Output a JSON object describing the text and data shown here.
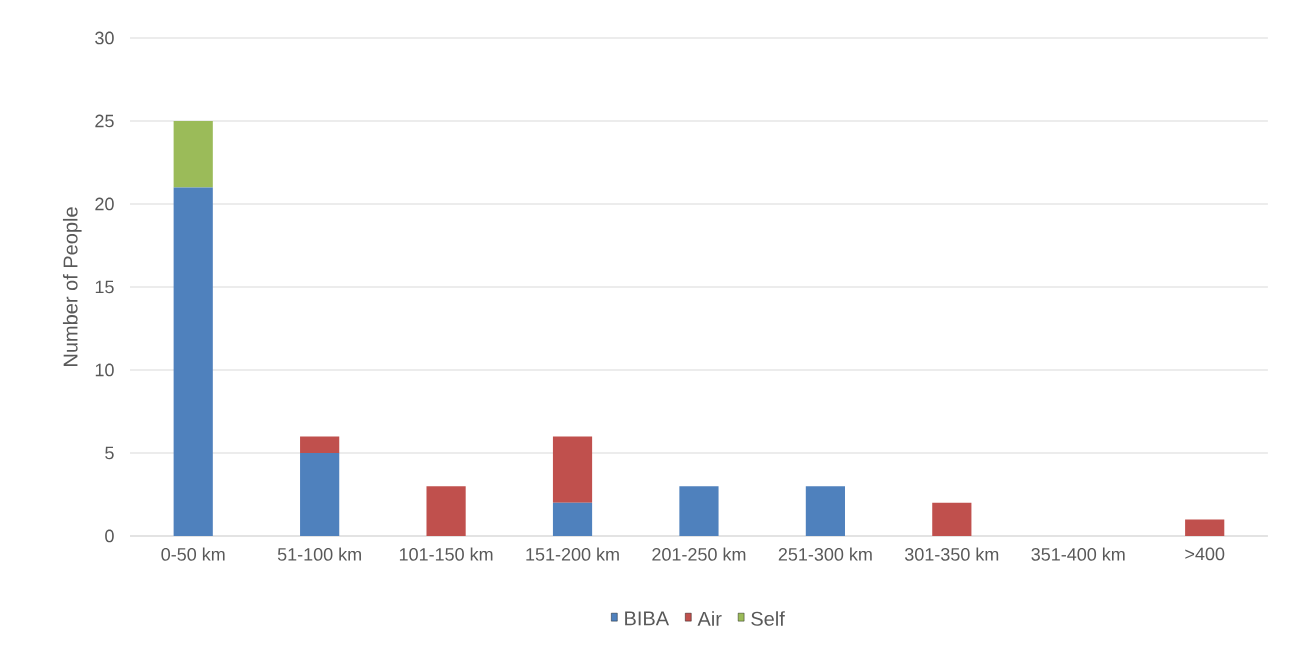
{
  "chart_data": {
    "type": "bar",
    "stacked": true,
    "ylabel": "Number of People",
    "categories": [
      "0-50 km",
      "51-100 km",
      "101-150 km",
      "151-200 km",
      "201-250 km",
      "251-300 km",
      "301-350 km",
      "351-400 km",
      ">400"
    ],
    "series": [
      {
        "name": "BIBA",
        "color": "#4f81bd",
        "values": [
          21,
          5,
          0,
          2,
          3,
          3,
          0,
          0,
          0
        ]
      },
      {
        "name": "Air",
        "color": "#c0504d",
        "values": [
          0,
          1,
          3,
          4,
          0,
          0,
          2,
          0,
          1
        ]
      },
      {
        "name": "Self",
        "color": "#9bbb59",
        "values": [
          4,
          0,
          0,
          0,
          0,
          0,
          0,
          0,
          0
        ]
      }
    ],
    "ylim": [
      0,
      30
    ],
    "yticks": [
      0,
      5,
      10,
      15,
      20,
      25,
      30
    ],
    "grid": "y",
    "legend": "bottom"
  }
}
